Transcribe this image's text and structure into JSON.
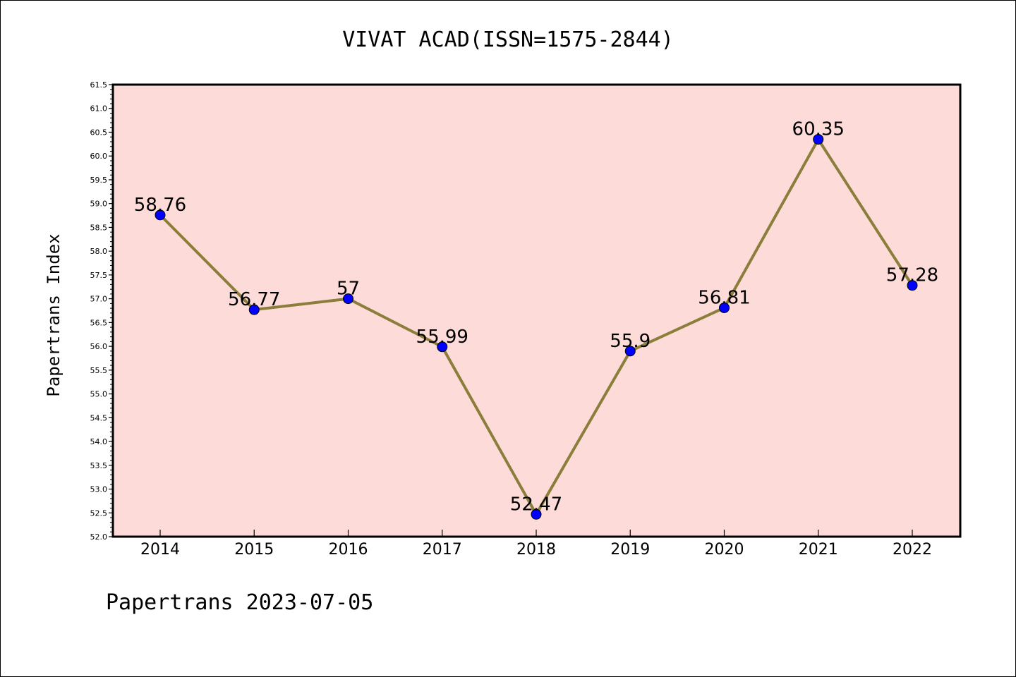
{
  "chart_data": {
    "type": "line",
    "title": "VIVAT ACAD(ISSN=1575-2844)",
    "ylabel": "Papertrans Index",
    "xlabel": "",
    "categories": [
      "2014",
      "2015",
      "2016",
      "2017",
      "2018",
      "2019",
      "2020",
      "2021",
      "2022"
    ],
    "values": [
      58.76,
      56.77,
      57,
      55.99,
      52.47,
      55.9,
      56.81,
      60.35,
      57.28
    ],
    "data_labels": [
      "58.76",
      "56.77",
      "57",
      "55.99",
      "52.47",
      "55.9",
      "56.81",
      "60.35",
      "57.28"
    ],
    "ylim": [
      52.0,
      61.5
    ],
    "yticks": [
      "52.0",
      "52.5",
      "53.0",
      "53.5",
      "54.0",
      "54.5",
      "55.0",
      "55.5",
      "56.0",
      "56.5",
      "57.0",
      "57.5",
      "58.0",
      "58.5",
      "59.0",
      "59.5",
      "60.0",
      "60.5",
      "61.0",
      "61.5"
    ],
    "grid": false,
    "colors": {
      "line": "#8b7d3a",
      "marker": "#0000ff",
      "plot_background": "#fddbd9"
    }
  },
  "footer": {
    "text": "Papertrans 2023-07-05"
  }
}
